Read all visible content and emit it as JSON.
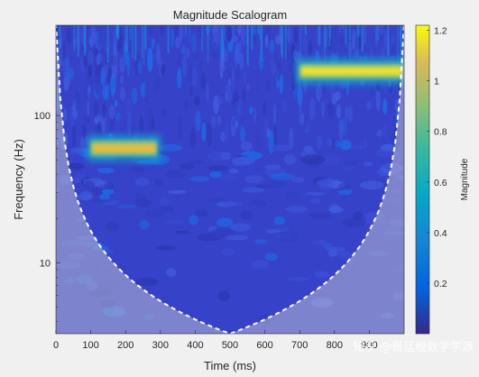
{
  "chart_data": {
    "type": "heatmap",
    "title": "Magnitude Scalogram",
    "xlabel": "Time (ms)",
    "ylabel": "Frequency (Hz)",
    "xlim": [
      0,
      1000
    ],
    "ylim": [
      3.3,
      410
    ],
    "yscale": "log",
    "x_ticks": [
      0,
      100,
      200,
      300,
      400,
      500,
      600,
      700,
      800,
      900
    ],
    "y_ticks": [
      10,
      100
    ],
    "colorbar": {
      "label": "Magnitude",
      "range": [
        0,
        1.22
      ],
      "ticks": [
        0.2,
        0.4,
        0.6,
        0.8,
        1,
        1.2
      ],
      "colormap": "parula"
    },
    "components": [
      {
        "t_start": 100,
        "t_end": 290,
        "freq": 60,
        "magnitude": 1.0
      },
      {
        "t_start": 700,
        "t_end": 1000,
        "freq": 200,
        "magnitude": 1.15
      }
    ],
    "background_magnitude": 0.15,
    "cone_of_influence": {
      "style": "dashed",
      "color": "#ffffff"
    }
  },
  "watermark": "知乎 @哥廷根数学学派"
}
